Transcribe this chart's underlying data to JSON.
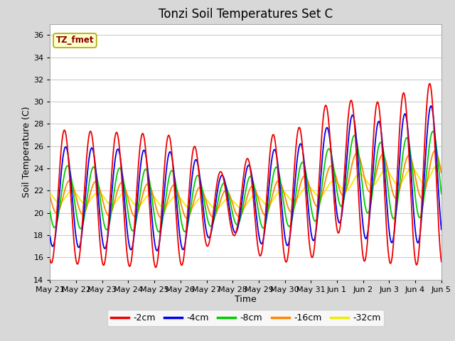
{
  "title": "Tonzi Soil Temperatures Set C",
  "xlabel": "Time",
  "ylabel": "Soil Temperature (C)",
  "ylim": [
    14,
    37
  ],
  "yticks": [
    14,
    16,
    18,
    20,
    22,
    24,
    26,
    28,
    30,
    32,
    34,
    36
  ],
  "fig_bg_color": "#d8d8d8",
  "plot_bg_color": "#ffffff",
  "series_labels": [
    "-2cm",
    "-4cm",
    "-8cm",
    "-16cm",
    "-32cm"
  ],
  "series_colors": [
    "#ee0000",
    "#0000ee",
    "#00cc00",
    "#ff8800",
    "#eeee00"
  ],
  "title_fontsize": 12,
  "xtick_labels": [
    "May 21",
    "May 22",
    "May 23",
    "May 24",
    "May 25",
    "May 26",
    "May 27",
    "May 28",
    "May 29",
    "May 30",
    "May 31",
    "Jun 1",
    "Jun 2",
    "Jun 3",
    "Jun 4",
    "Jun 5"
  ],
  "grid_color": "#cccccc",
  "annotation_text": "TZ_fmet",
  "annotation_color": "#880000",
  "annotation_bg": "#ffffcc",
  "annotation_edge": "#aaaa00"
}
